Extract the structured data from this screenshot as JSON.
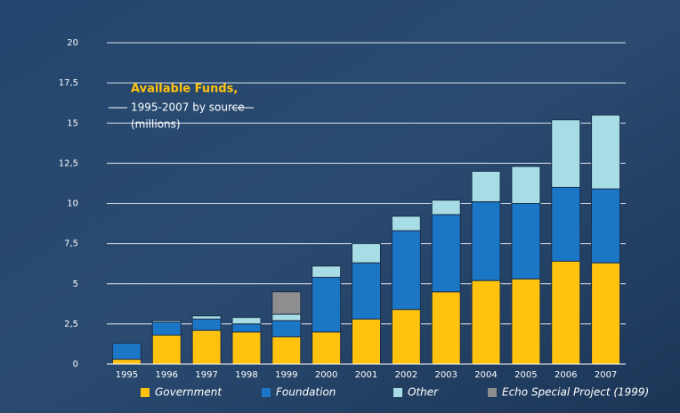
{
  "chart_data": {
    "type": "stacked_bar",
    "title": "Available Funds,",
    "subtitle": "1995-2007 by source",
    "unit_label": "(millions)",
    "categories": [
      "1995",
      "1996",
      "1997",
      "1998",
      "1999",
      "2000",
      "2001",
      "2002",
      "2003",
      "2004",
      "2005",
      "2006",
      "2007"
    ],
    "series": [
      {
        "name": "Government",
        "color": "#ffc20e",
        "values": [
          0.3,
          1.8,
          2.1,
          2.0,
          1.7,
          2.0,
          2.8,
          3.4,
          4.5,
          5.2,
          5.3,
          6.4,
          6.3
        ]
      },
      {
        "name": "Foundation",
        "color": "#1c76c6",
        "values": [
          1.0,
          0.8,
          0.7,
          0.5,
          1.0,
          3.4,
          3.5,
          4.9,
          4.8,
          4.9,
          4.7,
          4.6,
          4.6
        ]
      },
      {
        "name": "Other",
        "color": "#a9dde6",
        "values": [
          null,
          0.1,
          0.2,
          0.4,
          0.4,
          0.7,
          1.2,
          0.9,
          0.9,
          1.9,
          2.3,
          4.2,
          4.6
        ]
      },
      {
        "name": "Echo Special Project (1999)",
        "color": "#8e8e8e",
        "values": [
          null,
          null,
          null,
          null,
          1.4,
          null,
          null,
          null,
          null,
          null,
          null,
          null,
          null
        ]
      }
    ],
    "ylim": [
      0,
      20
    ],
    "yticks": [
      0,
      {
        "value": 2.5,
        "label": "2,5"
      },
      5,
      {
        "value": 7.5,
        "label": "7,5"
      },
      10,
      {
        "value": 12.5,
        "label": "12,5"
      },
      15,
      {
        "value": 17.5,
        "label": "17,5"
      },
      20
    ],
    "grid": true,
    "legend": "bottom"
  }
}
